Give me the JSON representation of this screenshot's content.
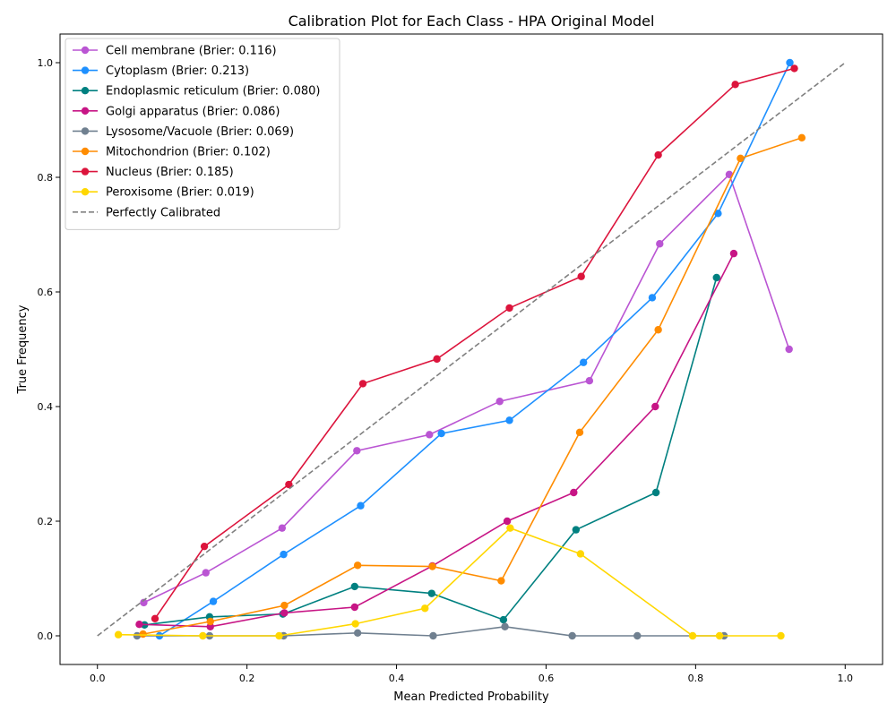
{
  "chart_data": {
    "type": "line",
    "title": "Calibration Plot for Each Class - HPA Original Model",
    "xlabel": "Mean Predicted Probability",
    "ylabel": "True Frequency",
    "xlim": [
      -0.05,
      1.05
    ],
    "ylim": [
      -0.05,
      1.05
    ],
    "xticks": [
      "0.0",
      "0.2",
      "0.4",
      "0.6",
      "0.8",
      "1.0"
    ],
    "yticks": [
      "0.0",
      "0.2",
      "0.4",
      "0.6",
      "0.8",
      "1.0"
    ],
    "grid": false,
    "legend_position": "top-left",
    "series": [
      {
        "name": "Cell membrane (Brier: 0.116)",
        "color": "#ba55d3",
        "x": [
          0.062,
          0.145,
          0.247,
          0.347,
          0.444,
          0.538,
          0.658,
          0.752,
          0.845,
          0.925
        ],
        "y": [
          0.058,
          0.11,
          0.188,
          0.323,
          0.351,
          0.409,
          0.445,
          0.684,
          0.805,
          0.5
        ]
      },
      {
        "name": "Cytoplasm (Brier: 0.213)",
        "color": "#1e90ff",
        "x": [
          0.083,
          0.155,
          0.249,
          0.352,
          0.46,
          0.551,
          0.65,
          0.742,
          0.83,
          0.926
        ],
        "y": [
          0.0,
          0.06,
          0.142,
          0.227,
          0.353,
          0.376,
          0.477,
          0.59,
          0.737,
          1.0
        ]
      },
      {
        "name": "Endoplasmic reticulum (Brier: 0.080)",
        "color": "#008080",
        "x": [
          0.063,
          0.15,
          0.248,
          0.344,
          0.447,
          0.543,
          0.64,
          0.747,
          0.828
        ],
        "y": [
          0.019,
          0.033,
          0.038,
          0.086,
          0.074,
          0.028,
          0.185,
          0.25,
          0.625
        ]
      },
      {
        "name": "Golgi apparatus (Brier: 0.086)",
        "color": "#c71585",
        "x": [
          0.056,
          0.151,
          0.25,
          0.344,
          0.448,
          0.548,
          0.637,
          0.746,
          0.851
        ],
        "y": [
          0.02,
          0.016,
          0.04,
          0.05,
          0.122,
          0.2,
          0.25,
          0.4,
          0.667
        ]
      },
      {
        "name": "Lysosome/Vacuole (Brier: 0.069)",
        "color": "#708090",
        "x": [
          0.053,
          0.15,
          0.249,
          0.348,
          0.449,
          0.545,
          0.635,
          0.722,
          0.838
        ],
        "y": [
          0.0,
          0.0,
          0.0,
          0.005,
          0.0,
          0.016,
          0.0,
          0.0,
          0.0
        ]
      },
      {
        "name": "Mitochondrion (Brier: 0.102)",
        "color": "#ff8c00",
        "x": [
          0.061,
          0.151,
          0.25,
          0.348,
          0.448,
          0.54,
          0.645,
          0.75,
          0.86,
          0.942
        ],
        "y": [
          0.003,
          0.025,
          0.053,
          0.123,
          0.121,
          0.096,
          0.355,
          0.534,
          0.833,
          0.869
        ]
      },
      {
        "name": "Nucleus (Brier: 0.185)",
        "color": "#dc143c",
        "x": [
          0.077,
          0.143,
          0.256,
          0.355,
          0.454,
          0.551,
          0.647,
          0.75,
          0.853,
          0.932
        ],
        "y": [
          0.03,
          0.156,
          0.264,
          0.44,
          0.483,
          0.572,
          0.627,
          0.839,
          0.962,
          0.99
        ]
      },
      {
        "name": "Peroxisome (Brier: 0.019)",
        "color": "#ffd700",
        "x": [
          0.028,
          0.141,
          0.243,
          0.345,
          0.438,
          0.552,
          0.646,
          0.796,
          0.832,
          0.914
        ],
        "y": [
          0.002,
          0.0,
          0.0,
          0.021,
          0.048,
          0.188,
          0.143,
          0.0,
          0.0,
          0.0
        ]
      }
    ],
    "reference_line": {
      "name": "Perfectly Calibrated",
      "color": "#808080",
      "x": [
        0,
        1
      ],
      "y": [
        0,
        1
      ]
    }
  }
}
